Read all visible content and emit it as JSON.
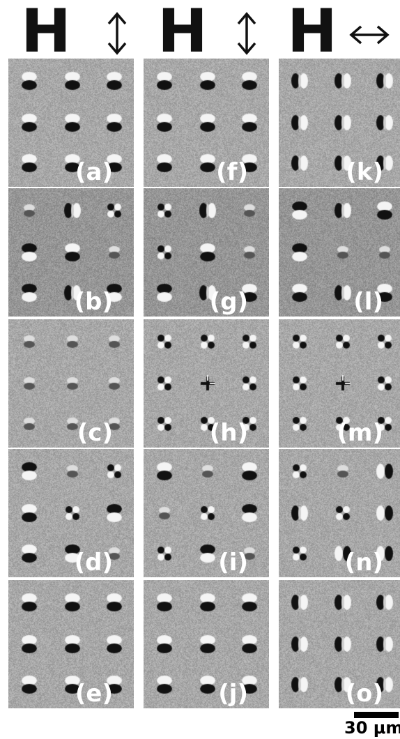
{
  "columns": [
    {
      "field_letter": "H",
      "arrow_icon": "vertical-double-arrow-icon"
    },
    {
      "field_letter": "H",
      "arrow_icon": "vertical-double-arrow-icon"
    },
    {
      "field_letter": "H",
      "arrow_icon": "horizontal-double-arrow-icon"
    }
  ],
  "panels": [
    {
      "label": "(a)",
      "contrast": "vertical-dipole"
    },
    {
      "label": "(b)",
      "contrast": "mixed"
    },
    {
      "label": "(c)",
      "contrast": "weak"
    },
    {
      "label": "(d)",
      "contrast": "mixed-vertical"
    },
    {
      "label": "(e)",
      "contrast": "vertical-dipole"
    },
    {
      "label": "(f)",
      "contrast": "vertical-dipole"
    },
    {
      "label": "(g)",
      "contrast": "mixed"
    },
    {
      "label": "(h)",
      "contrast": "vortex"
    },
    {
      "label": "(i)",
      "contrast": "mixed-vertical"
    },
    {
      "label": "(j)",
      "contrast": "vertical-dipole"
    },
    {
      "label": "(k)",
      "contrast": "horizontal-dipole"
    },
    {
      "label": "(l)",
      "contrast": "mixed"
    },
    {
      "label": "(m)",
      "contrast": "vortex"
    },
    {
      "label": "(n)",
      "contrast": "mixed-horizontal"
    },
    {
      "label": "(o)",
      "contrast": "horizontal-dipole"
    }
  ],
  "scale_bar": {
    "label": "30 μm"
  },
  "colors": {
    "background_gray": "#a8a8a8",
    "dark": "#111111",
    "light": "#f4f4f4"
  }
}
